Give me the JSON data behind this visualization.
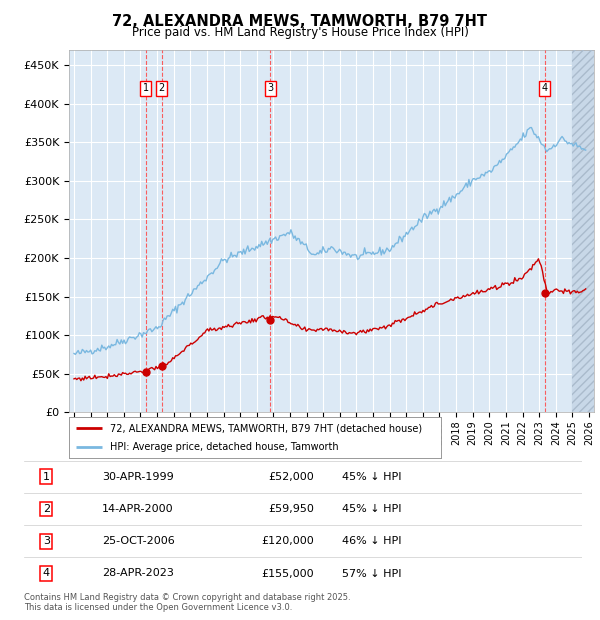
{
  "title": "72, ALEXANDRA MEWS, TAMWORTH, B79 7HT",
  "subtitle": "Price paid vs. HM Land Registry's House Price Index (HPI)",
  "hpi_label": "HPI: Average price, detached house, Tamworth",
  "property_label": "72, ALEXANDRA MEWS, TAMWORTH, B79 7HT (detached house)",
  "transactions": [
    {
      "num": 1,
      "date": "30-APR-1999",
      "price": 52000,
      "pct": "45%",
      "dir": "↓",
      "year_float": 1999.33
    },
    {
      "num": 2,
      "date": "14-APR-2000",
      "price": 59950,
      "pct": "45%",
      "dir": "↓",
      "year_float": 2000.29
    },
    {
      "num": 3,
      "date": "25-OCT-2006",
      "price": 120000,
      "pct": "46%",
      "dir": "↓",
      "year_float": 2006.82
    },
    {
      "num": 4,
      "date": "28-APR-2023",
      "price": 155000,
      "pct": "57%",
      "dir": "↓",
      "year_float": 2023.33
    }
  ],
  "ylim": [
    0,
    470000
  ],
  "xlim_start": 1994.7,
  "xlim_end": 2026.3,
  "yticks": [
    0,
    50000,
    100000,
    150000,
    200000,
    250000,
    300000,
    350000,
    400000,
    450000
  ],
  "ytick_labels": [
    "£0",
    "£50K",
    "£100K",
    "£150K",
    "£200K",
    "£250K",
    "£300K",
    "£350K",
    "£400K",
    "£450K"
  ],
  "xticks": [
    1995,
    1996,
    1997,
    1998,
    1999,
    2000,
    2001,
    2002,
    2003,
    2004,
    2005,
    2006,
    2007,
    2008,
    2009,
    2010,
    2011,
    2012,
    2013,
    2014,
    2015,
    2016,
    2017,
    2018,
    2019,
    2020,
    2021,
    2022,
    2023,
    2024,
    2025,
    2026
  ],
  "hpi_color": "#7ab8e0",
  "property_color": "#cc0000",
  "background_color": "#dce9f5",
  "grid_color": "#ffffff",
  "footer_text": "Contains HM Land Registry data © Crown copyright and database right 2025.\nThis data is licensed under the Open Government Licence v3.0."
}
